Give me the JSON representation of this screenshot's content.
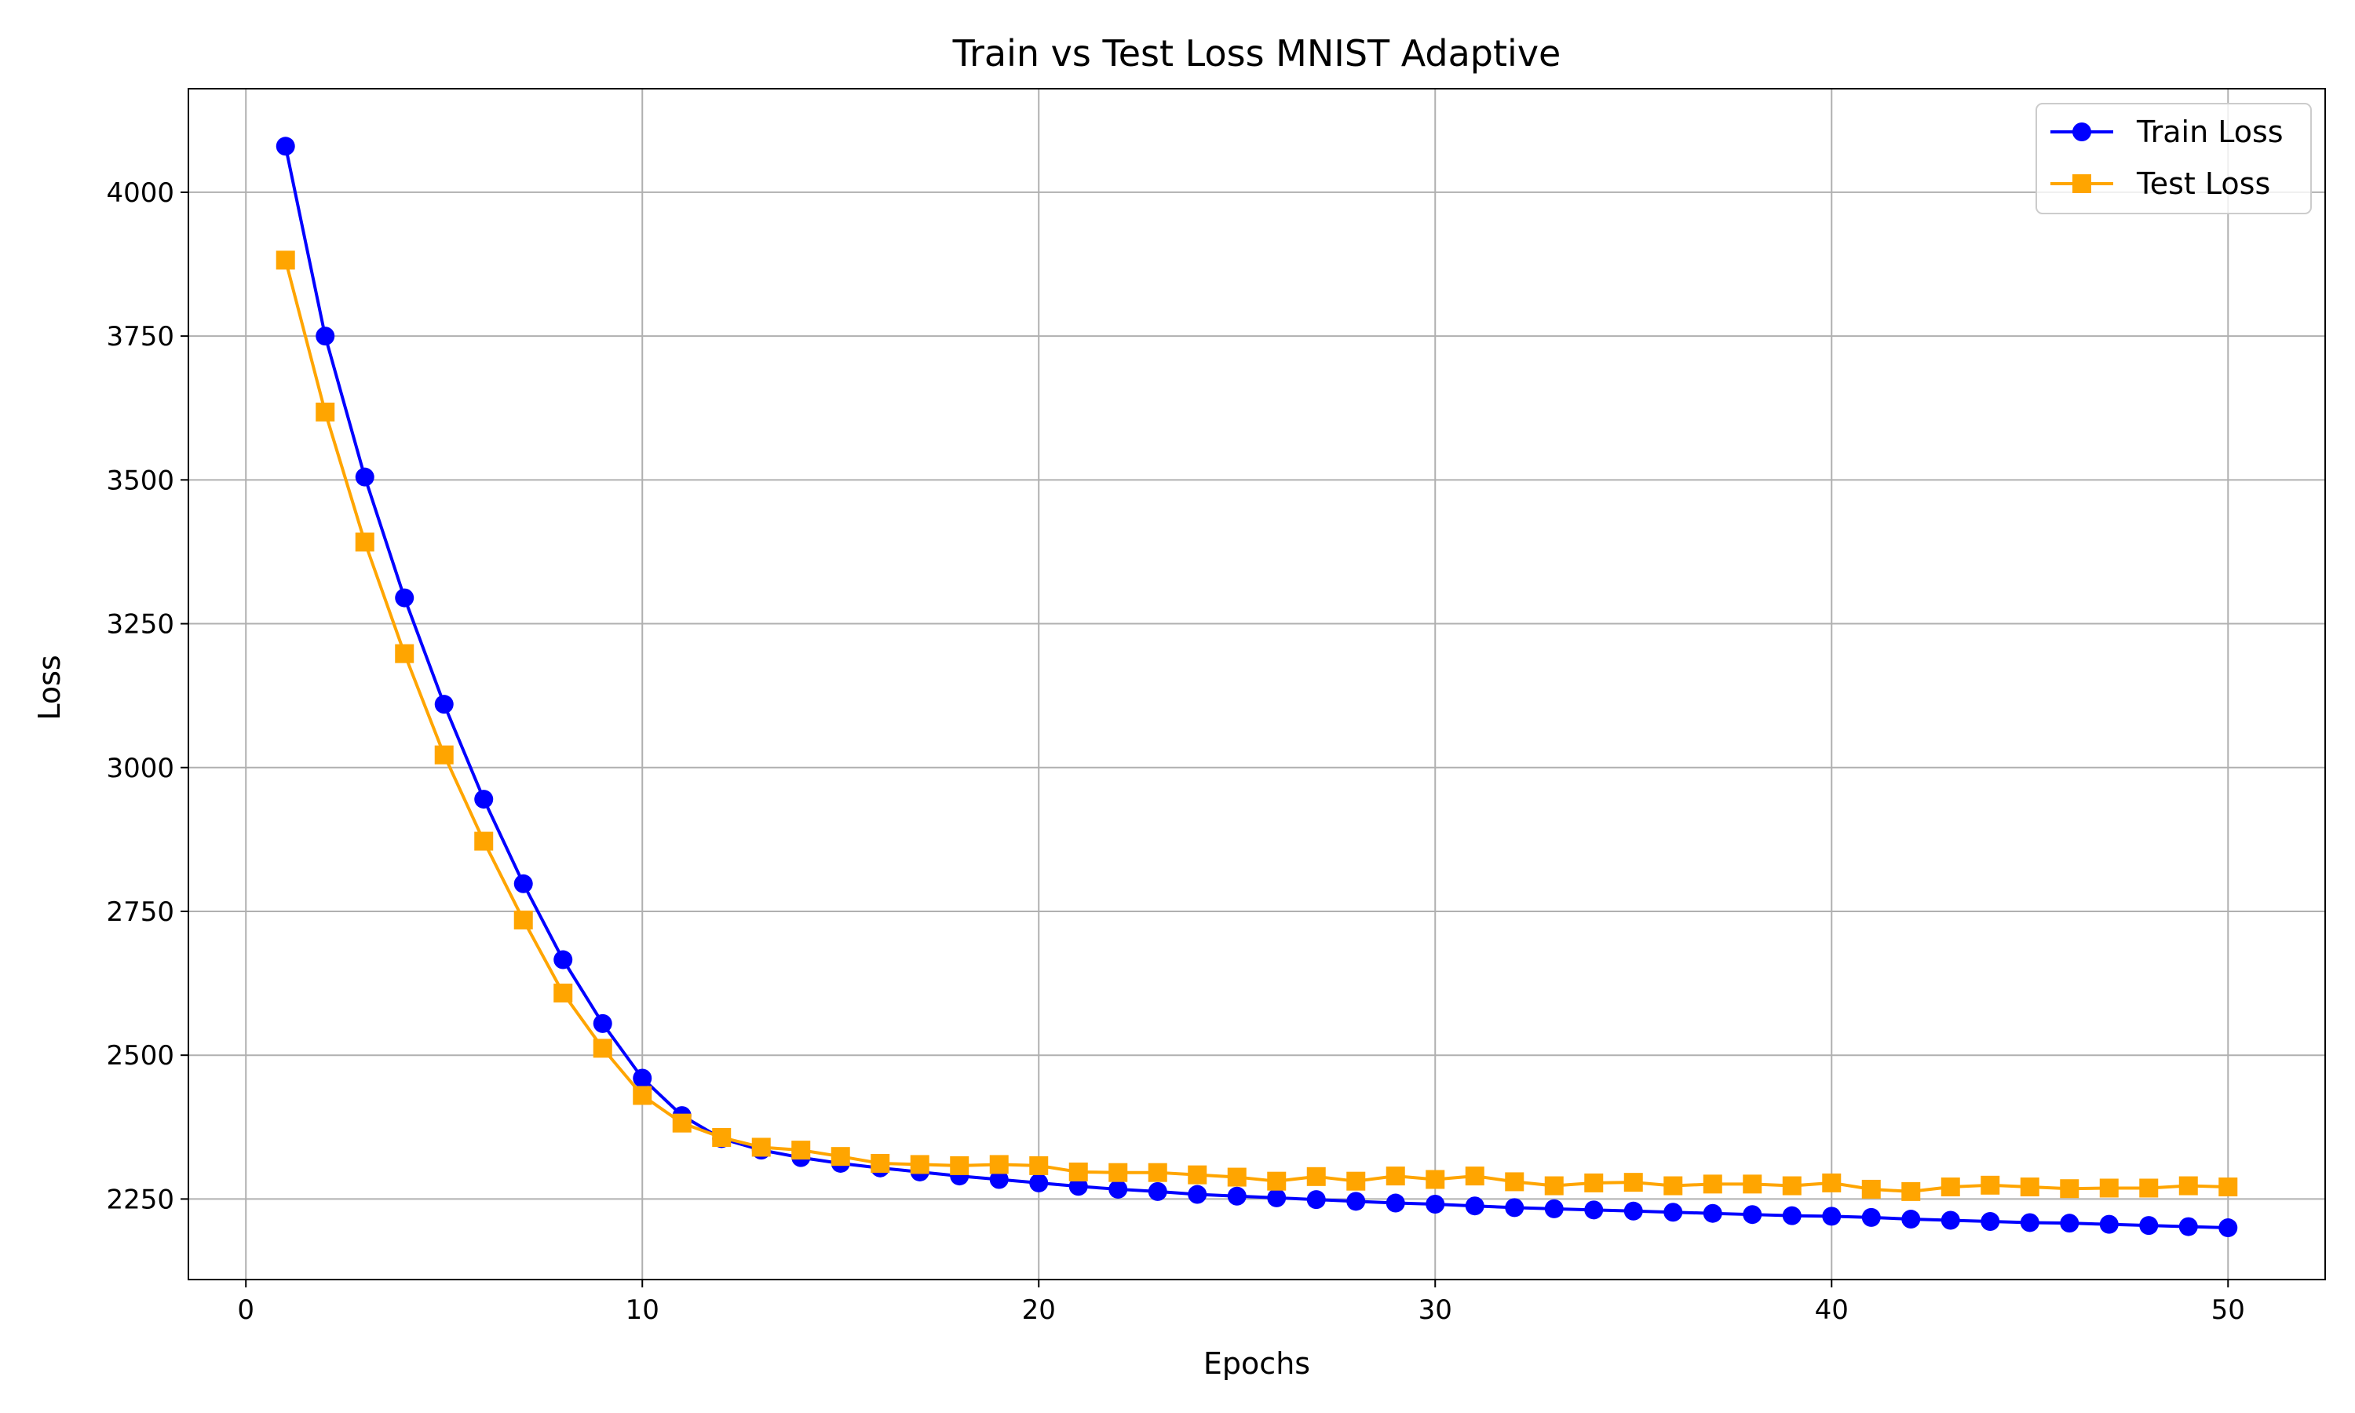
{
  "chart_data": {
    "type": "line",
    "title": "Train vs Test Loss MNIST Adaptive",
    "xlabel": "Epochs",
    "ylabel": "Loss",
    "xlim": [
      -1.45,
      52.45
    ],
    "ylim": [
      2110,
      4180
    ],
    "xticks": [
      0,
      10,
      20,
      30,
      40,
      50
    ],
    "yticks": [
      2250,
      2500,
      2750,
      3000,
      3250,
      3500,
      3750,
      4000
    ],
    "grid": true,
    "legend_position": "top-right",
    "x": [
      1,
      2,
      3,
      4,
      5,
      6,
      7,
      8,
      9,
      10,
      11,
      12,
      13,
      14,
      15,
      16,
      17,
      18,
      19,
      20,
      21,
      22,
      23,
      24,
      25,
      26,
      27,
      28,
      29,
      30,
      31,
      32,
      33,
      34,
      35,
      36,
      37,
      38,
      39,
      40,
      41,
      42,
      43,
      44,
      45,
      46,
      47,
      48,
      49,
      50
    ],
    "series": [
      {
        "name": "Train Loss",
        "color": "#0000ff",
        "marker": "circle",
        "values": [
          4080,
          3750,
          3505,
          3295,
          3110,
          2945,
          2798,
          2666,
          2555,
          2460,
          2395,
          2355,
          2335,
          2322,
          2312,
          2304,
          2297,
          2290,
          2284,
          2278,
          2272,
          2267,
          2263,
          2258,
          2255,
          2252,
          2249,
          2246,
          2243,
          2241,
          2238,
          2235,
          2233,
          2231,
          2229,
          2227,
          2225,
          2223,
          2221,
          2220,
          2218,
          2215,
          2213,
          2211,
          2209,
          2208,
          2206,
          2204,
          2202,
          2200
        ]
      },
      {
        "name": "Test Loss",
        "color": "#ffa500",
        "marker": "square",
        "values": [
          3882,
          3618,
          3392,
          3198,
          3022,
          2872,
          2735,
          2608,
          2512,
          2430,
          2382,
          2357,
          2340,
          2335,
          2324,
          2312,
          2310,
          2308,
          2310,
          2308,
          2297,
          2296,
          2296,
          2292,
          2288,
          2281,
          2289,
          2281,
          2290,
          2284,
          2290,
          2280,
          2273,
          2278,
          2279,
          2273,
          2276,
          2276,
          2273,
          2278,
          2267,
          2263,
          2271,
          2274,
          2271,
          2268,
          2269,
          2269,
          2273,
          2271
        ]
      }
    ]
  }
}
